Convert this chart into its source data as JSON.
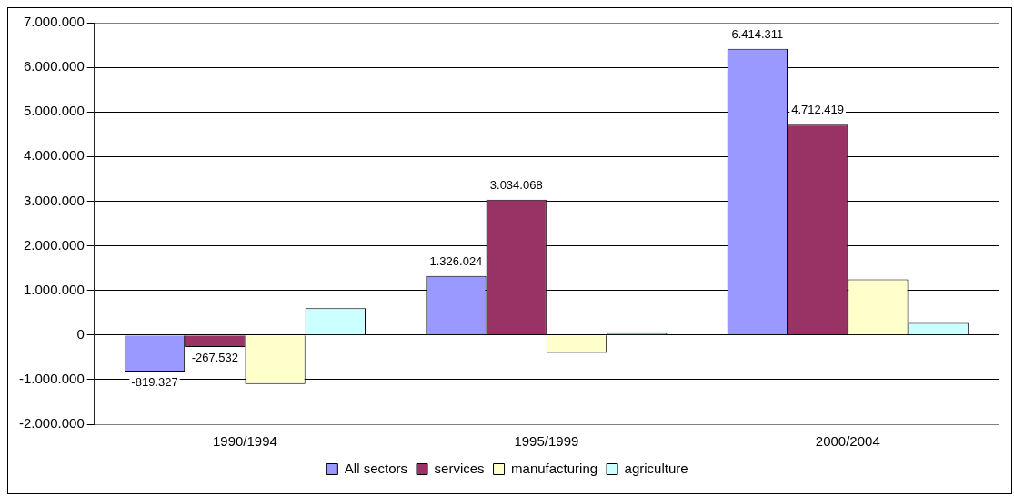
{
  "chart_data": {
    "type": "bar",
    "categories": [
      "1990/1994",
      "1995/1999",
      "2000/2004"
    ],
    "series": [
      {
        "name": "All sectors",
        "color": "#9999ff",
        "values": [
          -819327,
          1326024,
          6414311
        ],
        "value_labels": [
          "-819.327",
          "1.326.024",
          "6.414.311"
        ]
      },
      {
        "name": "services",
        "color": "#993366",
        "values": [
          -267532,
          3034068,
          4712419
        ],
        "value_labels": [
          "-267.532",
          "3.034.068",
          "4.712.419"
        ]
      },
      {
        "name": "manufacturing",
        "color": "#ffffcc",
        "values": [
          -1100000,
          -400000,
          1250000
        ],
        "value_labels": [
          null,
          null,
          null
        ]
      },
      {
        "name": "agriculture",
        "color": "#ccffff",
        "values": [
          600000,
          40000,
          270000
        ],
        "value_labels": [
          null,
          null,
          null
        ]
      }
    ],
    "ylim": [
      -2000000,
      7000000
    ],
    "yticks": [
      {
        "value": -2000000,
        "label": "-2.000.000"
      },
      {
        "value": -1000000,
        "label": "-1.000.000"
      },
      {
        "value": 0,
        "label": "0"
      },
      {
        "value": 1000000,
        "label": "1.000.000"
      },
      {
        "value": 2000000,
        "label": "2.000.000"
      },
      {
        "value": 3000000,
        "label": "3.000.000"
      },
      {
        "value": 4000000,
        "label": "4.000.000"
      },
      {
        "value": 5000000,
        "label": "5.000.000"
      },
      {
        "value": 6000000,
        "label": "6.000.000"
      },
      {
        "value": 7000000,
        "label": "7.000.000"
      }
    ],
    "grid": "y",
    "legend": "bottom"
  }
}
